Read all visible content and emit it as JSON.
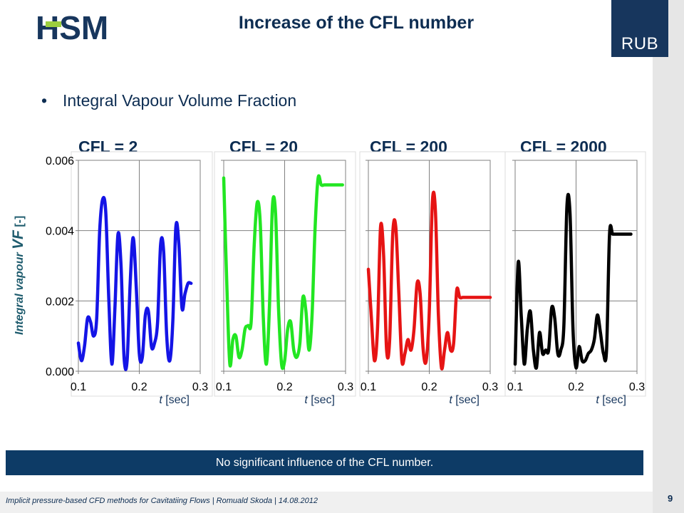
{
  "header": {
    "title": "Increase of the CFL number",
    "logo_left": "HSM",
    "logo_right": "RUB"
  },
  "bullet": {
    "text": "Integral Vapour Volume Fraction"
  },
  "y_axis_label": {
    "prefix": "Integral vapour ",
    "symbol": "VF",
    "unit": " [-]"
  },
  "x_axis_label": {
    "symbol": "t",
    "unit": " [sec]"
  },
  "panel_titles": [
    "CFL = 2",
    "CFL = 20",
    "CFL = 200",
    "CFL = 2000"
  ],
  "chart_data": [
    {
      "type": "line",
      "title": "CFL = 2",
      "color": "#1414e6",
      "xlim": [
        0.1,
        0.3
      ],
      "ylim": [
        0,
        0.006
      ],
      "xticks": [
        "0.1",
        "0.2",
        "0.3"
      ],
      "yticks": [
        "0.000",
        "0.002",
        "0.004",
        "0.006"
      ],
      "series": [
        {
          "x": [
            0.1,
            0.105,
            0.11,
            0.115,
            0.12,
            0.125,
            0.13,
            0.135,
            0.14,
            0.145,
            0.15,
            0.155,
            0.16,
            0.165,
            0.17,
            0.175,
            0.18,
            0.185,
            0.19,
            0.195,
            0.2,
            0.205,
            0.21,
            0.215,
            0.22,
            0.225,
            0.23,
            0.235,
            0.24,
            0.245,
            0.25,
            0.255,
            0.26,
            0.265,
            0.27,
            0.275,
            0.28,
            0.285
          ],
          "y": [
            0.0008,
            0.0003,
            0.0007,
            0.0015,
            0.0014,
            0.001,
            0.0015,
            0.004,
            0.0049,
            0.0045,
            0.002,
            0.0002,
            0.0018,
            0.0039,
            0.003,
            0.0004,
            0.0003,
            0.0025,
            0.0038,
            0.0024,
            0.0005,
            0.0004,
            0.0016,
            0.0017,
            0.0007,
            0.0008,
            0.0014,
            0.0036,
            0.0034,
            0.001,
            0.0003,
            0.0014,
            0.0041,
            0.0036,
            0.0018,
            0.0022,
            0.0025,
            0.0025
          ]
        }
      ]
    },
    {
      "type": "line",
      "title": "CFL = 20",
      "color": "#22e622",
      "xlim": [
        0.1,
        0.3
      ],
      "ylim": [
        0,
        0.006
      ],
      "xticks": [
        "0.1",
        "0.2",
        "0.3"
      ],
      "yticks": [],
      "series": [
        {
          "x": [
            0.1,
            0.105,
            0.11,
            0.115,
            0.12,
            0.125,
            0.13,
            0.135,
            0.14,
            0.145,
            0.15,
            0.155,
            0.16,
            0.165,
            0.17,
            0.175,
            0.18,
            0.185,
            0.19,
            0.195,
            0.2,
            0.205,
            0.21,
            0.215,
            0.22,
            0.225,
            0.23,
            0.235,
            0.24,
            0.245,
            0.25,
            0.255,
            0.26,
            0.265,
            0.27,
            0.275,
            0.28,
            0.285,
            0.29,
            0.295
          ],
          "y": [
            0.0055,
            0.0025,
            0.0002,
            0.0009,
            0.001,
            0.0004,
            0.0006,
            0.0012,
            0.0013,
            0.0014,
            0.0036,
            0.0048,
            0.0042,
            0.0015,
            0.0002,
            0.0018,
            0.0047,
            0.0045,
            0.0018,
            0.0002,
            0.0003,
            0.0012,
            0.0014,
            0.0006,
            0.0004,
            0.0008,
            0.0021,
            0.0017,
            0.0006,
            0.0016,
            0.0041,
            0.0055,
            0.0053,
            0.0053,
            0.0053,
            0.0053,
            0.0053,
            0.0053,
            0.0053,
            0.0053
          ]
        }
      ]
    },
    {
      "type": "line",
      "title": "CFL = 200",
      "color": "#e61414",
      "xlim": [
        0.1,
        0.3
      ],
      "ylim": [
        0,
        0.006
      ],
      "xticks": [
        "0.1",
        "0.2",
        "0.3"
      ],
      "yticks": [],
      "series": [
        {
          "x": [
            0.1,
            0.105,
            0.11,
            0.115,
            0.12,
            0.125,
            0.13,
            0.135,
            0.14,
            0.145,
            0.15,
            0.155,
            0.16,
            0.165,
            0.17,
            0.175,
            0.18,
            0.185,
            0.19,
            0.195,
            0.2,
            0.205,
            0.21,
            0.215,
            0.22,
            0.225,
            0.23,
            0.235,
            0.24,
            0.245,
            0.25,
            0.255,
            0.26,
            0.265,
            0.27,
            0.275,
            0.28,
            0.285,
            0.29,
            0.295,
            0.3
          ],
          "y": [
            0.0029,
            0.0015,
            0.0003,
            0.0012,
            0.0041,
            0.0033,
            0.0006,
            0.0009,
            0.0039,
            0.0041,
            0.0022,
            0.0003,
            0.0005,
            0.0009,
            0.0006,
            0.0012,
            0.0025,
            0.0022,
            0.0006,
            0.0003,
            0.0017,
            0.0048,
            0.0046,
            0.0016,
            0.0001,
            0.0006,
            0.0011,
            0.0006,
            0.0008,
            0.0023,
            0.0021,
            0.0021,
            0.0021,
            0.0021,
            0.0021,
            0.0021,
            0.0021,
            0.0021,
            0.0021,
            0.0021,
            0.0021
          ]
        }
      ]
    },
    {
      "type": "line",
      "title": "CFL = 2000",
      "color": "#000000",
      "xlim": [
        0.1,
        0.3
      ],
      "ylim": [
        0,
        0.006
      ],
      "xticks": [
        "0.1",
        "0.2",
        "0.3"
      ],
      "yticks": [],
      "series": [
        {
          "x": [
            0.1,
            0.105,
            0.11,
            0.115,
            0.12,
            0.125,
            0.13,
            0.135,
            0.14,
            0.145,
            0.15,
            0.155,
            0.16,
            0.165,
            0.17,
            0.175,
            0.18,
            0.185,
            0.19,
            0.195,
            0.2,
            0.205,
            0.21,
            0.215,
            0.22,
            0.225,
            0.23,
            0.235,
            0.24,
            0.245,
            0.25,
            0.255,
            0.26,
            0.265,
            0.27,
            0.275,
            0.28,
            0.285,
            0.29
          ],
          "y": [
            0.0002,
            0.0031,
            0.0016,
            0.0002,
            0.0012,
            0.0017,
            0.0006,
            0.0001,
            0.0011,
            0.0005,
            0.0006,
            0.0006,
            0.0018,
            0.0015,
            0.0005,
            0.0006,
            0.0013,
            0.0047,
            0.0045,
            0.0012,
            0.0001,
            0.0007,
            0.0003,
            0.0003,
            0.0005,
            0.0006,
            0.0009,
            0.0016,
            0.0011,
            0.0005,
            0.0006,
            0.0039,
            0.0039,
            0.0039,
            0.0039,
            0.0039,
            0.0039,
            0.0039,
            0.0039
          ]
        }
      ]
    }
  ],
  "banner": {
    "text": "No significant influence of the CFL number."
  },
  "footer": {
    "text": "Implicit pressure-based  CFD methods for Cavitatiing Flows | Romuald Skoda | 14.08.2012",
    "page": "9"
  }
}
